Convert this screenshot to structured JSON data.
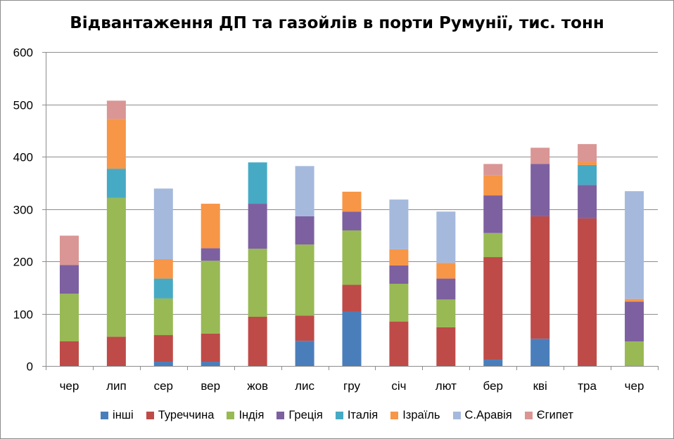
{
  "chart_data": {
    "type": "bar",
    "stacked": true,
    "title": "Відвантаження ДП та газойлів в порти Румунії, тис. тонн",
    "xlabel": "",
    "ylabel": "",
    "ylim": [
      0,
      600
    ],
    "yticks": [
      0,
      100,
      200,
      300,
      400,
      500,
      600
    ],
    "grid": true,
    "legend_position": "bottom",
    "categories": [
      "чер",
      "лип",
      "сер",
      "вер",
      "жов",
      "лис",
      "гру",
      "січ",
      "лют",
      "бер",
      "кві",
      "тра",
      "чер"
    ],
    "series": [
      {
        "name": "інші",
        "color": "#4a7ebb",
        "values": [
          0,
          0,
          8,
          8,
          0,
          48,
          104,
          0,
          0,
          12,
          52,
          0,
          0
        ]
      },
      {
        "name": "Туреччина",
        "color": "#be4b48",
        "values": [
          47,
          56,
          51,
          54,
          94,
          48,
          51,
          85,
          74,
          196,
          234,
          282,
          0
        ]
      },
      {
        "name": "Індія",
        "color": "#98b954",
        "values": [
          91,
          265,
          70,
          139,
          130,
          136,
          104,
          72,
          53,
          46,
          0,
          0,
          47
        ]
      },
      {
        "name": "Греція",
        "color": "#7d60a0",
        "values": [
          55,
          0,
          0,
          24,
          86,
          54,
          36,
          35,
          40,
          72,
          100,
          64,
          76
        ]
      },
      {
        "name": "Італія",
        "color": "#46aac5",
        "values": [
          0,
          56,
          38,
          0,
          79,
          0,
          0,
          0,
          0,
          0,
          0,
          38,
          0
        ]
      },
      {
        "name": "Ізраїль",
        "color": "#f79646",
        "values": [
          0,
          95,
          37,
          85,
          0,
          0,
          38,
          31,
          30,
          38,
          0,
          6,
          5
        ]
      },
      {
        "name": "С.Аравія",
        "color": "#a5b9dd",
        "values": [
          0,
          0,
          135,
          0,
          0,
          96,
          0,
          95,
          98,
          0,
          0,
          0,
          206
        ]
      },
      {
        "name": "Єгипет",
        "color": "#d99694",
        "values": [
          56,
          35,
          0,
          0,
          0,
          0,
          0,
          0,
          0,
          22,
          31,
          34,
          0
        ]
      }
    ]
  }
}
